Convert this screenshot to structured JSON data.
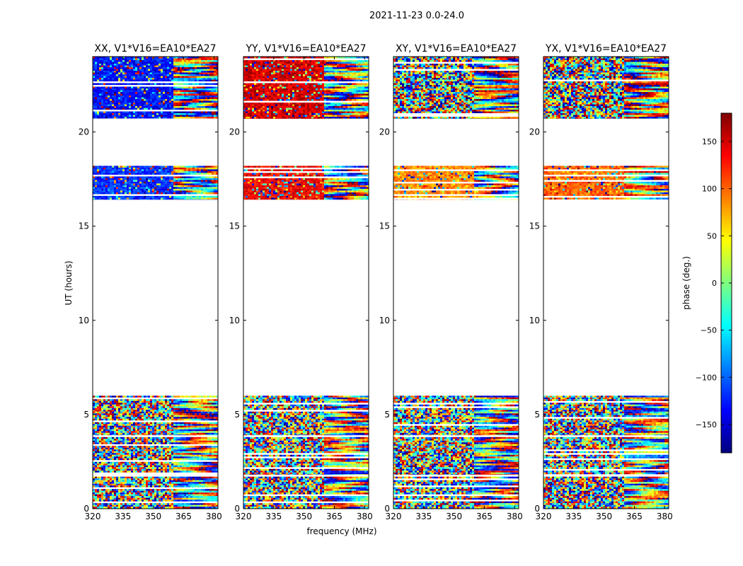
{
  "figure": {
    "suptitle": "2021-11-23 0.0-24.0",
    "xlabel": "frequency (MHz)",
    "ylabel": "UT (hours)"
  },
  "colorbar": {
    "label": "phase (deg.)",
    "range": [
      -180,
      180
    ],
    "ticks": [
      150,
      100,
      50,
      0,
      -50,
      -100,
      -150
    ],
    "tick_labels": [
      "150",
      "100",
      "50",
      "0",
      "−50",
      "−100",
      "−150"
    ],
    "colormap": [
      "#00007f",
      "#0000ff",
      "#007fff",
      "#00ffff",
      "#7fff7f",
      "#ffff00",
      "#ff7f00",
      "#ff0000",
      "#7f0000"
    ]
  },
  "chart_data": [
    {
      "type": "heatmap",
      "title": "XX, V1*V16=EA10*EA27",
      "x_ticks": [
        320,
        335,
        350,
        365,
        380
      ],
      "x_tick_labels": [
        "320",
        "335",
        "350",
        "365",
        "380"
      ],
      "xlim": [
        320,
        382
      ],
      "y_ticks": [
        0,
        5,
        10,
        15,
        20
      ],
      "y_tick_labels": [
        "0",
        "5",
        "10",
        "15",
        "20"
      ],
      "ylim": [
        0,
        24
      ],
      "data_bands_hours": [
        [
          0.0,
          1.7
        ],
        [
          1.8,
          3.8
        ],
        [
          3.9,
          6.0
        ],
        [
          16.4,
          18.2
        ],
        [
          20.7,
          24.0
        ]
      ],
      "dominant_phase_deg": [
        null,
        null,
        null,
        -120,
        -130
      ]
    },
    {
      "type": "heatmap",
      "title": "YY, V1*V16=EA10*EA27",
      "x_ticks": [
        320,
        335,
        350,
        365,
        380
      ],
      "x_tick_labels": [
        "320",
        "335",
        "350",
        "365",
        "380"
      ],
      "xlim": [
        320,
        382
      ],
      "y_ticks": [
        0,
        5,
        10,
        15,
        20
      ],
      "y_tick_labels": [
        "0",
        "5",
        "10",
        "15",
        "20"
      ],
      "ylim": [
        0,
        24
      ],
      "data_bands_hours": [
        [
          0.0,
          1.7
        ],
        [
          1.8,
          3.8
        ],
        [
          3.9,
          6.0
        ],
        [
          16.4,
          18.2
        ],
        [
          20.7,
          24.0
        ]
      ],
      "dominant_phase_deg": [
        null,
        null,
        null,
        140,
        150
      ]
    },
    {
      "type": "heatmap",
      "title": "XY, V1*V16=EA10*EA27",
      "x_ticks": [
        320,
        335,
        350,
        365,
        380
      ],
      "x_tick_labels": [
        "320",
        "335",
        "350",
        "365",
        "380"
      ],
      "xlim": [
        320,
        382
      ],
      "y_ticks": [
        0,
        5,
        10,
        15,
        20
      ],
      "y_tick_labels": [
        "0",
        "5",
        "10",
        "15",
        "20"
      ],
      "ylim": [
        0,
        24
      ],
      "data_bands_hours": [
        [
          0.0,
          1.7
        ],
        [
          1.8,
          3.8
        ],
        [
          3.9,
          6.0
        ],
        [
          16.4,
          18.2
        ],
        [
          20.7,
          24.0
        ]
      ],
      "dominant_phase_deg": [
        null,
        null,
        null,
        85,
        null
      ]
    },
    {
      "type": "heatmap",
      "title": "YX, V1*V16=EA10*EA27",
      "x_ticks": [
        320,
        335,
        350,
        365,
        380
      ],
      "x_tick_labels": [
        "320",
        "335",
        "350",
        "365",
        "380"
      ],
      "xlim": [
        320,
        382
      ],
      "y_ticks": [
        0,
        5,
        10,
        15,
        20
      ],
      "y_tick_labels": [
        "0",
        "5",
        "10",
        "15",
        "20"
      ],
      "ylim": [
        0,
        24
      ],
      "data_bands_hours": [
        [
          0.0,
          1.7
        ],
        [
          1.8,
          3.8
        ],
        [
          3.9,
          6.0
        ],
        [
          16.4,
          18.2
        ],
        [
          20.7,
          24.0
        ]
      ],
      "dominant_phase_deg": [
        null,
        null,
        null,
        100,
        null
      ]
    }
  ]
}
